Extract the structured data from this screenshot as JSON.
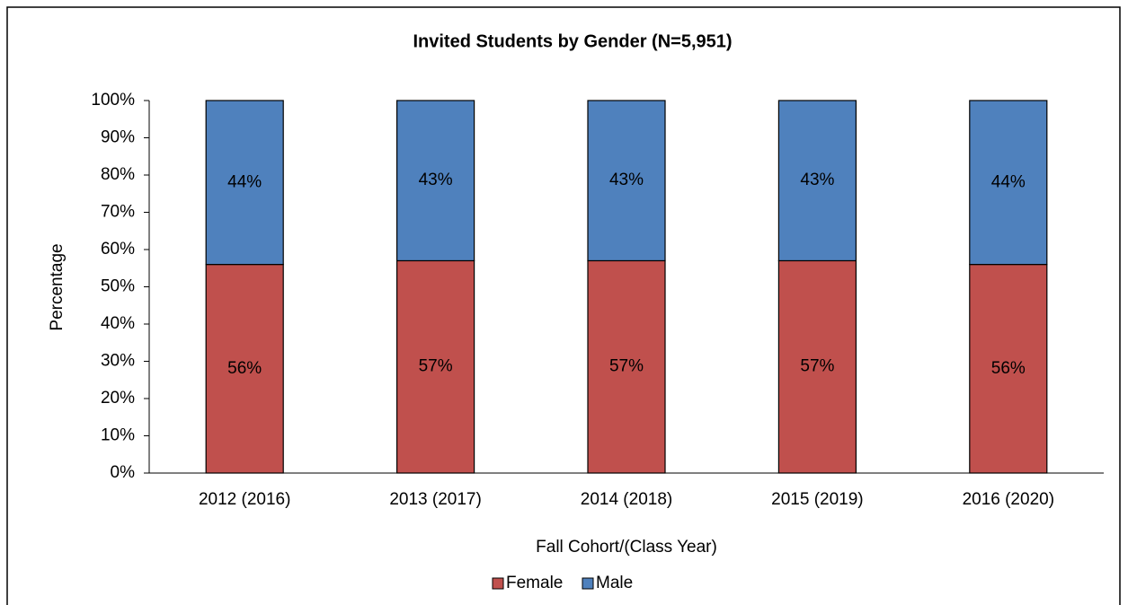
{
  "chart_data": {
    "type": "stacked_bar",
    "title": "Invited Students by Gender (N=5,951)",
    "x_label": "Fall Cohort/(Class Year)",
    "y_label": "Percentage",
    "categories": [
      "2012 (2016)",
      "2013 (2017)",
      "2014 (2018)",
      "2015 (2019)",
      "2016 (2020)"
    ],
    "series": [
      {
        "name": "Female",
        "color": "#c0504d",
        "values": [
          56,
          57,
          57,
          57,
          56
        ],
        "value_labels": [
          "56%",
          "57%",
          "57%",
          "57%",
          "56%"
        ]
      },
      {
        "name": "Male",
        "color": "#4f81bd",
        "values": [
          44,
          43,
          43,
          43,
          44
        ],
        "value_labels": [
          "44%",
          "43%",
          "43%",
          "43%",
          "44%"
        ]
      }
    ],
    "ylim": [
      0,
      100
    ],
    "yticks": [
      {
        "value": 0,
        "label": "0%"
      },
      {
        "value": 10,
        "label": "10%"
      },
      {
        "value": 20,
        "label": "20%"
      },
      {
        "value": 30,
        "label": "30%"
      },
      {
        "value": 40,
        "label": "40%"
      },
      {
        "value": 50,
        "label": "50%"
      },
      {
        "value": 60,
        "label": "60%"
      },
      {
        "value": 70,
        "label": "70%"
      },
      {
        "value": 80,
        "label": "80%"
      },
      {
        "value": 90,
        "label": "90%"
      },
      {
        "value": 100,
        "label": "100%"
      }
    ],
    "legend": "bottom"
  }
}
